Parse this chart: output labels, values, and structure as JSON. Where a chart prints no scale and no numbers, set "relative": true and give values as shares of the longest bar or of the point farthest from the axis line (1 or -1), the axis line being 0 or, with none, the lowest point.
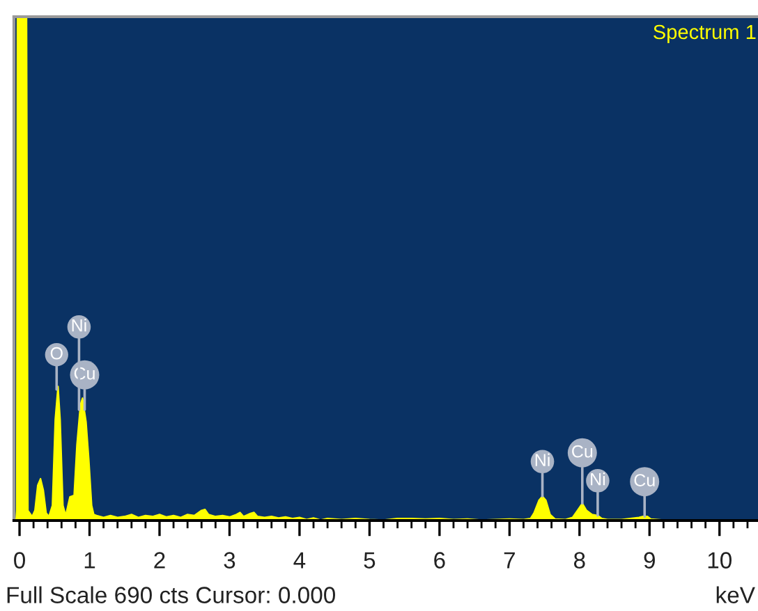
{
  "chart_data": {
    "type": "area",
    "title": "Spectrum 1",
    "xlabel": "keV",
    "relative": true,
    "x": [
      -0.05,
      -0.04,
      -0.03,
      0.1,
      0.12,
      0.18,
      0.22,
      0.26,
      0.3,
      0.34,
      0.38,
      0.42,
      0.47,
      0.51,
      0.55,
      0.58,
      0.62,
      0.66,
      0.72,
      0.78,
      0.82,
      0.87,
      0.9,
      0.95,
      0.99,
      1.03,
      1.06,
      1.1,
      1.2,
      1.3,
      1.4,
      1.5,
      1.6,
      1.7,
      1.8,
      1.9,
      2.0,
      2.1,
      2.2,
      2.3,
      2.4,
      2.5,
      2.6,
      2.65,
      2.7,
      2.8,
      2.9,
      3.0,
      3.1,
      3.15,
      3.2,
      3.3,
      3.35,
      3.4,
      3.5,
      3.6,
      3.7,
      3.8,
      3.9,
      4.0,
      4.1,
      4.2,
      4.3,
      4.4,
      4.6,
      4.8,
      5.0,
      5.2,
      5.4,
      5.6,
      5.8,
      6.0,
      6.2,
      6.4,
      6.6,
      6.8,
      7.0,
      7.2,
      7.3,
      7.35,
      7.42,
      7.47,
      7.52,
      7.58,
      7.65,
      7.8,
      7.9,
      7.97,
      8.04,
      8.1,
      8.18,
      8.26,
      8.32,
      8.4,
      8.6,
      8.85,
      8.9,
      8.97,
      9.02,
      9.2,
      9.5,
      10.0,
      10.5
    ],
    "series": [
      {
        "color": "#ffff00",
        "values": [
          0,
          0.02,
          1,
          1,
          0.02,
          0.008,
          0.02,
          0.07,
          0.083,
          0.06,
          0.015,
          0.008,
          0.03,
          0.2,
          0.266,
          0.2,
          0.03,
          0.01,
          0.047,
          0.05,
          0.15,
          0.23,
          0.243,
          0.196,
          0.12,
          0.03,
          0.012,
          0.01,
          0.006,
          0.01,
          0.006,
          0.008,
          0.012,
          0.006,
          0.01,
          0.008,
          0.012,
          0.007,
          0.01,
          0.006,
          0.012,
          0.01,
          0.02,
          0.022,
          0.012,
          0.008,
          0.01,
          0.007,
          0.012,
          0.016,
          0.008,
          0.014,
          0.016,
          0.008,
          0.006,
          0.008,
          0.005,
          0.007,
          0.004,
          0.006,
          0.002,
          0.005,
          0.001,
          0.004,
          0.002,
          0.004,
          0.002,
          0.001,
          0.004,
          0.004,
          0.003,
          0.004,
          0.002,
          0.003,
          0.001,
          0.002,
          0.003,
          0.002,
          0.004,
          0.015,
          0.04,
          0.048,
          0.04,
          0.012,
          0.003,
          0.002,
          0.006,
          0.02,
          0.034,
          0.02,
          0.012,
          0.01,
          0.004,
          0.002,
          0.002,
          0.006,
          0.008,
          0.008,
          0.003,
          0.001,
          0.001,
          0.001,
          0.001
        ]
      }
    ],
    "xlim": [
      -0.08,
      10.55
    ],
    "xticks": [
      0,
      {
        "value": 0.2,
        "label": null
      },
      {
        "value": 0.4,
        "label": null
      },
      {
        "value": 0.6,
        "label": null
      },
      {
        "value": 0.8,
        "label": null
      },
      1,
      {
        "value": 1.2,
        "label": null
      },
      {
        "value": 1.4,
        "label": null
      },
      {
        "value": 1.6,
        "label": null
      },
      {
        "value": 1.8,
        "label": null
      },
      2,
      {
        "value": 2.2,
        "label": null
      },
      {
        "value": 2.4,
        "label": null
      },
      {
        "value": 2.6,
        "label": null
      },
      {
        "value": 2.8,
        "label": null
      },
      3,
      {
        "value": 3.2,
        "label": null
      },
      {
        "value": 3.4,
        "label": null
      },
      {
        "value": 3.6,
        "label": null
      },
      {
        "value": 3.8,
        "label": null
      },
      4,
      {
        "value": 4.2,
        "label": null
      },
      {
        "value": 4.4,
        "label": null
      },
      {
        "value": 4.6,
        "label": null
      },
      {
        "value": 4.8,
        "label": null
      },
      5,
      {
        "value": 5.2,
        "label": null
      },
      {
        "value": 5.4,
        "label": null
      },
      {
        "value": 5.6,
        "label": null
      },
      {
        "value": 5.8,
        "label": null
      },
      6,
      {
        "value": 6.2,
        "label": null
      },
      {
        "value": 6.4,
        "label": null
      },
      {
        "value": 6.6,
        "label": null
      },
      {
        "value": 6.8,
        "label": null
      },
      7,
      {
        "value": 7.2,
        "label": null
      },
      {
        "value": 7.4,
        "label": null
      },
      {
        "value": 7.6,
        "label": null
      },
      {
        "value": 7.8,
        "label": null
      },
      8,
      {
        "value": 8.2,
        "label": null
      },
      {
        "value": 8.4,
        "label": null
      },
      {
        "value": 8.6,
        "label": null
      },
      {
        "value": 8.8,
        "label": null
      },
      9,
      {
        "value": 9.2,
        "label": null
      },
      {
        "value": 9.4,
        "label": null
      },
      {
        "value": 9.6,
        "label": null
      },
      {
        "value": 9.8,
        "label": null
      },
      10,
      {
        "value": 10.2,
        "label": null
      },
      {
        "value": 10.4,
        "label": null
      }
    ],
    "annotations": [
      {
        "text": "O",
        "x": 0.53,
        "y": 0.26
      },
      {
        "text": "Cu",
        "x": 0.93,
        "y": 0.22
      },
      {
        "text": "Ni",
        "x": 0.85,
        "y": 0.22
      },
      {
        "text": "Ni",
        "x": 7.47,
        "y": 0.048
      },
      {
        "text": "Ni",
        "x": 8.26,
        "y": 0.01
      },
      {
        "text": "Cu",
        "x": 8.04,
        "y": 0.034
      },
      {
        "text": "Cu",
        "x": 8.93,
        "y": 0.008
      },
      "Full Scale 690 cts Cursor: 0.000"
    ]
  }
}
